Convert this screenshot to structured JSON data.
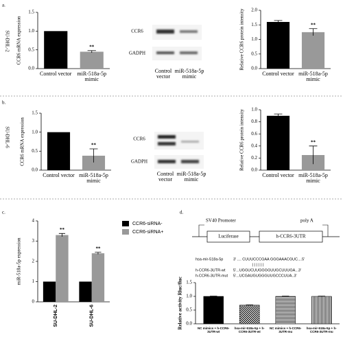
{
  "panel_labels": [
    "a.",
    "b.",
    "c.",
    "d."
  ],
  "cell_lines": [
    "SU-DHL-2",
    "SU-DHL-6"
  ],
  "blots": [
    {
      "labels": [
        "CCR6",
        "GADPH"
      ],
      "lanes": [
        "Control vector",
        "miR-518a-5p mimic"
      ]
    },
    {
      "labels": [
        "CCR6",
        "GADPH"
      ],
      "lanes": [
        "Control vector",
        "miR-518a-5p mimic"
      ]
    }
  ],
  "construct": {
    "promoter": "SV40 Promoter",
    "polya": "poly A",
    "boxes": [
      "Luciferase",
      "h-CCR6-3UTR"
    ]
  },
  "sequences": [
    {
      "name": "hsa-mir-518a-5p",
      "seq": "3' .... CUUUCCCGAA  GGGAAACGUC....5'"
    },
    {
      "name": "h-CCR6-3UTR-wt",
      "seq": "5'...UGGUCUUGGGGUUGCUUUGA...3'"
    },
    {
      "name": "h-CCR6-3UTR-mut",
      "seq": "5'...UCGAUGUGGGUUGCCCUUA..3'"
    }
  ],
  "chart_data": [
    {
      "type": "bar",
      "y_label": "CCR6 mRNA expression",
      "categories": [
        "Control vector",
        "miR-518a-5p mimic"
      ],
      "values": [
        1.0,
        0.45
      ],
      "errors": [
        null,
        0.03
      ],
      "significance": [
        null,
        "**"
      ],
      "colors": [
        "#000000",
        "#999999"
      ],
      "ylim": [
        0,
        1.5
      ],
      "yticks": [
        {
          "value": 0,
          "label": "0.0"
        },
        {
          "value": 0.5,
          "label": "0.5"
        },
        {
          "value": 1,
          "label": "1.0"
        },
        {
          "value": 1.5,
          "label": "1.5"
        }
      ]
    },
    {
      "type": "bar",
      "y_label": "Relative CCR6 protein intensity",
      "categories": [
        "Control vector",
        "miR-518a-5p mimic"
      ],
      "values": [
        1.6,
        1.25
      ],
      "errors": [
        0.05,
        0.12
      ],
      "significance": [
        null,
        "**"
      ],
      "colors": [
        "#000000",
        "#999999"
      ],
      "ylim": [
        0,
        2
      ],
      "yticks": [
        {
          "value": 0,
          "label": "0.0"
        },
        {
          "value": 0.5,
          "label": "0.5"
        },
        {
          "value": 1,
          "label": "1.0"
        },
        {
          "value": 1.5,
          "label": "1.5"
        },
        {
          "value": 2,
          "label": "2.0"
        }
      ]
    },
    {
      "type": "bar",
      "y_label": "CCR6 mRNA expression",
      "categories": [
        "Control vector",
        "miR-518a-5p mimic"
      ],
      "values": [
        1.0,
        0.38
      ],
      "errors": [
        null,
        0.18
      ],
      "significance": [
        null,
        "**"
      ],
      "colors": [
        "#000000",
        "#999999"
      ],
      "ylim": [
        0,
        1.5
      ],
      "yticks": [
        {
          "value": 0,
          "label": "0.0"
        },
        {
          "value": 0.5,
          "label": "0.5"
        },
        {
          "value": 1,
          "label": "1.0"
        },
        {
          "value": 1.5,
          "label": "1.5"
        }
      ]
    },
    {
      "type": "bar",
      "y_label": "Relative CCR6 protein intensity",
      "categories": [
        "Control vector",
        "miR-518a-5p mimic"
      ],
      "values": [
        0.9,
        0.25
      ],
      "errors": [
        0.03,
        0.15
      ],
      "significance": [
        null,
        "**"
      ],
      "colors": [
        "#000000",
        "#999999"
      ],
      "ylim": [
        0,
        1
      ],
      "yticks": [
        {
          "value": 0,
          "label": "0.0"
        },
        0.2,
        0.4,
        0.6,
        0.8,
        {
          "value": 1,
          "label": "1.0"
        }
      ]
    },
    {
      "type": "grouped_bar",
      "y_label": "miR-518a-5p expression",
      "categories": [
        "SU-DHL-2",
        "SU-DHL-6"
      ],
      "series": [
        {
          "name": "CCR6-siRNA-",
          "color": "#000000",
          "values": [
            1,
            1
          ]
        },
        {
          "name": "CCR6-siRNA+",
          "color": "#999999",
          "values": [
            3.3,
            2.4
          ],
          "errors": [
            0.08,
            0.05
          ],
          "significance": [
            "**",
            "**"
          ]
        }
      ],
      "ylim": [
        0,
        4
      ],
      "yticks": [
        0,
        1,
        2,
        3,
        4
      ]
    },
    {
      "type": "bar",
      "y_label": "Relative activity Rluc/fluc",
      "categories": [
        "NC mimics + h-CCR6-3UTR-wt",
        "hsa-mir-518a-5p + h-CCR6-3UTR-wt",
        "NC mimics + h-CCR6-3UTR-mu",
        "hsa-mir-518a-5p + h-CCR6-3UTR-mu"
      ],
      "values": [
        1.0,
        0.68,
        1.0,
        1.0
      ],
      "errors": [
        0.01,
        0.01,
        0.01,
        0.01
      ],
      "patterns": [
        "solid",
        "checker",
        "horizontal",
        "vertical"
      ],
      "ylim": [
        0,
        1.5
      ],
      "yticks": [
        {
          "value": 0,
          "label": "0.0"
        },
        {
          "value": 0.5,
          "label": "0.5"
        },
        {
          "value": 1,
          "label": "1.0"
        },
        {
          "value": 1.5,
          "label": "1.5"
        }
      ]
    }
  ]
}
